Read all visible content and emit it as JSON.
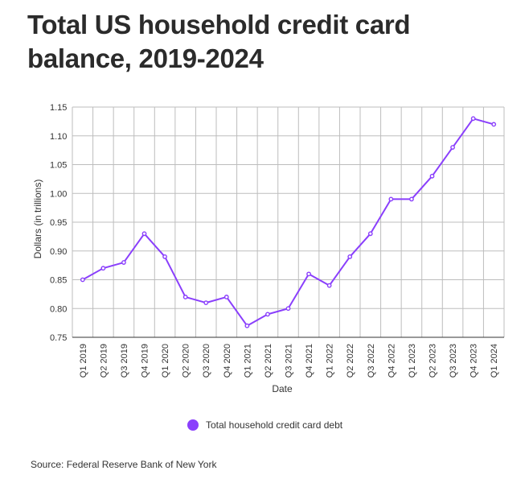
{
  "title": "Total US household credit card balance, 2019-2024",
  "source": "Source: Federal Reserve Bank of New York",
  "colors": {
    "line": "#8a3ffc",
    "grid": "#bdbdbd",
    "axis": "#333333"
  },
  "chart_data": {
    "type": "line",
    "xlabel": "Date",
    "ylabel": "Dollars (in trillions)",
    "ylim": [
      0.75,
      1.15
    ],
    "yticks": [
      "0.75",
      "0.80",
      "0.85",
      "0.90",
      "0.95",
      "1.00",
      "1.05",
      "1.10",
      "1.15"
    ],
    "grid": true,
    "legend_position": "bottom",
    "categories": [
      "Q1 2019",
      "Q2 2019",
      "Q3 2019",
      "Q4 2019",
      "Q1 2020",
      "Q2 2020",
      "Q3 2020",
      "Q4 2020",
      "Q1 2021",
      "Q2 2021",
      "Q3 2021",
      "Q4 2021",
      "Q1 2022",
      "Q2 2022",
      "Q3 2022",
      "Q4 2022",
      "Q1 2023",
      "Q2 2023",
      "Q3 2023",
      "Q4 2023",
      "Q1 2024"
    ],
    "series": [
      {
        "name": "Total household credit card debt",
        "values": [
          0.85,
          0.87,
          0.88,
          0.93,
          0.89,
          0.82,
          0.81,
          0.82,
          0.77,
          0.79,
          0.8,
          0.86,
          0.84,
          0.89,
          0.93,
          0.99,
          0.99,
          1.03,
          1.08,
          1.13,
          1.12
        ]
      }
    ]
  }
}
